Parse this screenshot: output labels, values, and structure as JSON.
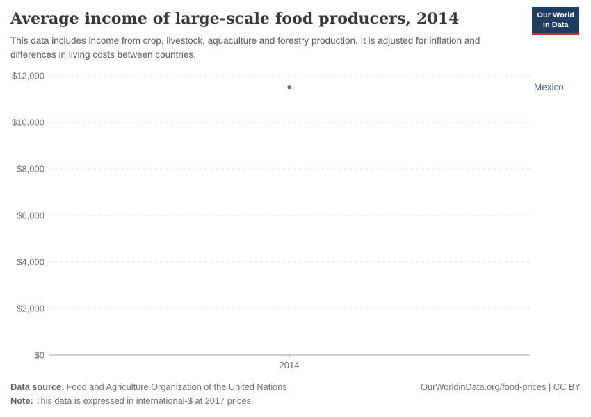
{
  "header": {
    "title": "Average income of large-scale food producers, 2014",
    "subtitle": "This data includes income from crop, livestock, aquaculture and forestry production. It is adjusted for inflation and differences in living costs between countries.",
    "logo": {
      "line1": "Our World",
      "line2": "in Data"
    }
  },
  "chart_data": {
    "type": "scatter",
    "title": "Average income of large-scale food producers, 2014",
    "x": [
      2014
    ],
    "x_tick_labels": [
      "2014"
    ],
    "series": [
      {
        "name": "Mexico",
        "values": [
          11500
        ],
        "color": "#4C6A9C"
      }
    ],
    "xlabel": "",
    "ylabel": "",
    "ylim": [
      0,
      12000
    ],
    "y_ticks": [
      0,
      2000,
      4000,
      6000,
      8000,
      10000,
      12000
    ],
    "y_tick_labels": [
      "$0",
      "$2,000",
      "$4,000",
      "$6,000",
      "$8,000",
      "$10,000",
      "$12,000"
    ],
    "grid": "horizontal-dashed",
    "legend": "entity-label-right"
  },
  "footer": {
    "source_label": "Data source:",
    "source_text": "Food and Agriculture Organization of the United Nations",
    "note_label": "Note:",
    "note_text": "This data is expressed in international-$ at 2017 prices.",
    "link_text": "OurWorldinData.org/food-prices | CC BY"
  },
  "colors": {
    "accent_blue": "#4C6A9C",
    "logo_bg": "#1d3d63",
    "logo_red": "#c9302c",
    "gridline": "#e2e2e2",
    "axis_line": "#a5a5a5",
    "tick_text": "#6e6e6e"
  }
}
